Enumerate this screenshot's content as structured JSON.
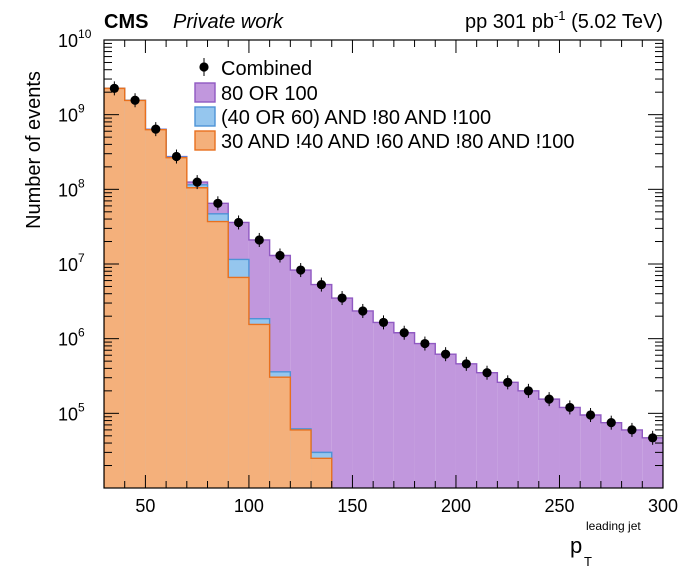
{
  "header": {
    "experiment": "CMS",
    "status": "Private work",
    "lumi_prefix": "pp 301 pb",
    "lumi_exp": "-1",
    "energy": "(5.02 TeV)"
  },
  "chart_data": {
    "type": "histogram",
    "ylabel": "Number of events",
    "xlabel_main": "p",
    "xlabel_sub": "T",
    "xlabel_sup": "leading jet",
    "xlim": [
      30,
      300
    ],
    "ylim": [
      10000,
      10000000000
    ],
    "y_log": true,
    "bin_width": 10,
    "x_ticks": [
      50,
      100,
      150,
      200,
      250,
      300
    ],
    "y_tick_exponents": [
      5,
      6,
      7,
      8,
      9,
      10
    ],
    "legend_position": "top-center",
    "colors": {
      "c80": "#c197dd",
      "c80_line": "#9059c2",
      "c40": "#95c6ee",
      "c40_line": "#4e93d6",
      "c30": "#f4b07b",
      "c30_line": "#e8701e",
      "marker": "#000000"
    },
    "series": [
      {
        "name": "30 AND !40 AND !60 AND !80 AND !100",
        "color": "#f4b07b",
        "edges": [
          30,
          40,
          50,
          60,
          70,
          80,
          90,
          100,
          110,
          120,
          130,
          140
        ],
        "values": [
          2250000000.0,
          1550000000.0,
          630000000.0,
          265000000.0,
          105000000.0,
          37000000.0,
          6600000.0,
          1550000.0,
          305000.0,
          60000.0,
          25000.0
        ]
      },
      {
        "name": "(40 OR 60) AND !80 AND !100",
        "color": "#95c6ee",
        "edges": [
          30,
          40,
          50,
          60,
          70,
          80,
          90,
          100,
          110,
          120,
          130,
          140
        ],
        "values": [
          2250000000.0,
          1560000000.0,
          635000000.0,
          270000000.0,
          115000000.0,
          47000000.0,
          11500000.0,
          1850000.0,
          360000.0,
          62000.0,
          30000.0
        ]
      },
      {
        "name": "80 OR 100",
        "color": "#c197dd",
        "edges": [
          30,
          40,
          50,
          60,
          70,
          80,
          90,
          100,
          110,
          120,
          130,
          140,
          150,
          160,
          170,
          180,
          190,
          200,
          210,
          220,
          230,
          240,
          250,
          260,
          270,
          280,
          290,
          300
        ],
        "values": [
          2250000000.0,
          1560000000.0,
          640000000.0,
          275000000.0,
          125000000.0,
          65000000.0,
          36000000.0,
          21000000.0,
          13000000.0,
          8300000.0,
          5300000.0,
          3500000.0,
          2350000.0,
          1650000.0,
          1200000.0,
          860000.0,
          620000.0,
          460000.0,
          350000.0,
          260000.0,
          200000.0,
          155000.0,
          120000.0,
          95000.0,
          75000.0,
          60000.0,
          47000.0
        ]
      },
      {
        "name": "Combined",
        "type": "points",
        "x": [
          35,
          45,
          55,
          65,
          75,
          85,
          95,
          105,
          115,
          125,
          135,
          145,
          155,
          165,
          175,
          185,
          195,
          205,
          215,
          225,
          235,
          245,
          255,
          265,
          275,
          285,
          295
        ],
        "values": [
          2250000000.0,
          1560000000.0,
          640000000.0,
          275000000.0,
          125000000.0,
          65000000.0,
          36000000.0,
          21000000.0,
          13000000.0,
          8300000.0,
          5300000.0,
          3500000.0,
          2350000.0,
          1650000.0,
          1200000.0,
          860000.0,
          620000.0,
          460000.0,
          350000.0,
          260000.0,
          200000.0,
          155000.0,
          120000.0,
          95000.0,
          75000.0,
          60000.0,
          47000.0
        ]
      }
    ]
  }
}
